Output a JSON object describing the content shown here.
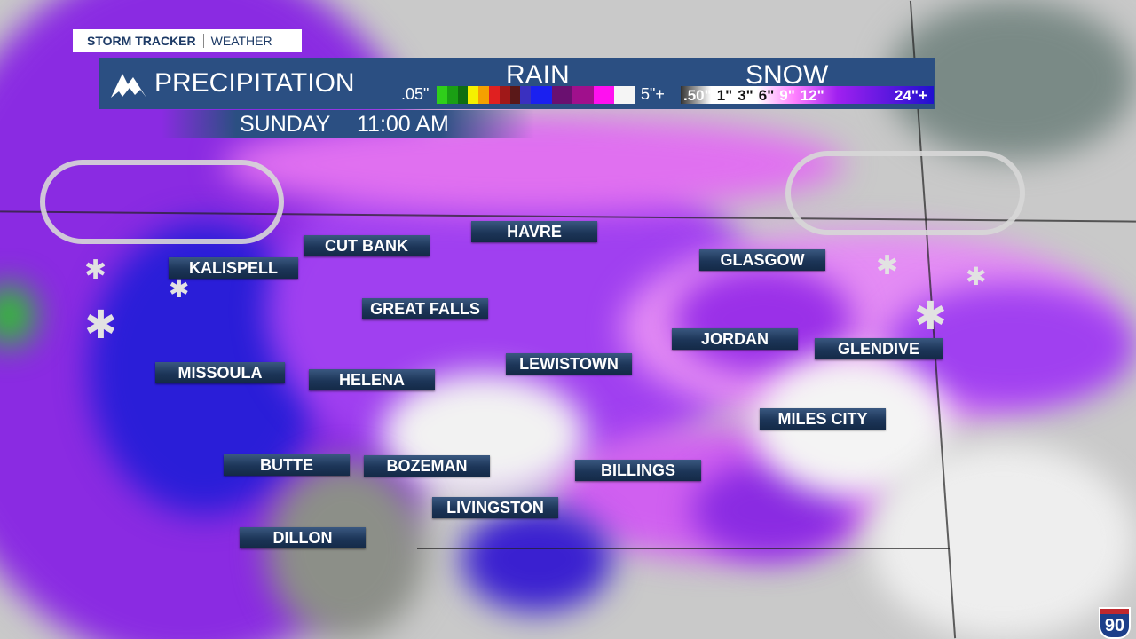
{
  "brand": {
    "name": "STORM TRACKER",
    "section": "WEATHER"
  },
  "banner": {
    "title": "PRECIPITATION",
    "icon": "mountain-icon",
    "rain": {
      "title": "RAIN",
      "min": ".05\"",
      "max": "5\"+",
      "colors": [
        "#2fcf1a",
        "#1a9f14",
        "#0f6e10",
        "#f5f000",
        "#f5a000",
        "#e02020",
        "#a01818",
        "#5a1818",
        "#3a30c0",
        "#1a20f0",
        "#6a1070",
        "#a0108c",
        "#ff10f0",
        "#f5f5f5"
      ]
    },
    "snow": {
      "title": "SNOW",
      "ticks": [
        ".50\"",
        "1\"",
        "3\"",
        "6\"",
        "9\"",
        "12\"",
        "24\"+"
      ],
      "colors": [
        "#333333",
        "#ffffff",
        "#ff80ff",
        "#a020f0",
        "#2010d0"
      ]
    }
  },
  "time": {
    "day": "SUNDAY",
    "clock": "11:00 AM"
  },
  "cities": [
    "CUT BANK",
    "HAVRE",
    "KALISPELL",
    "GLASGOW",
    "GREAT FALLS",
    "JORDAN",
    "GLENDIVE",
    "LEWISTOWN",
    "MISSOULA",
    "HELENA",
    "MILES CITY",
    "BUTTE",
    "BOZEMAN",
    "BILLINGS",
    "LIVINGSTON",
    "DILLON"
  ],
  "interstate": "90"
}
